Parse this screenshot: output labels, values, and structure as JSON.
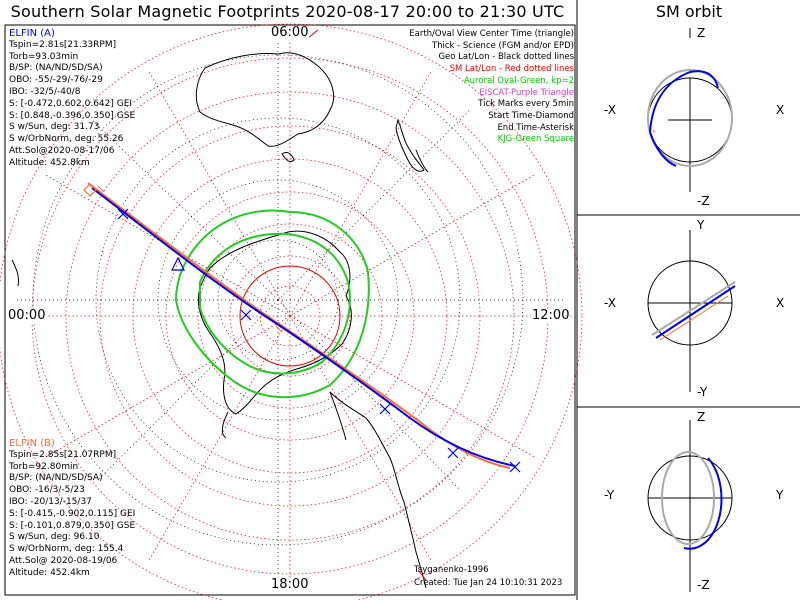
{
  "title": "Southern Solar Magnetic Footprints 2020-08-17 20:00 to 21:30 UTC",
  "sm_title": "SM orbit",
  "elfin_a": {
    "name": "ELFIN (A)",
    "color": "#0000ee",
    "lines": [
      "Tspin=2.81s[21.33RPM]",
      "Torb=93.03min",
      "B/SP: (NA/ND/SD/SA)",
      "OBO: -55/-29/-76/-29",
      "IBO: -32/5/-40/8",
      "S: [-0.472,0.602,0.642] GEI",
      "S: [0.848,-0.396,0.350] GSE",
      "S w/Sun, deg: 31.73",
      "S w/OrbNorm, deg: 55.26",
      "Att.Sol@2020-08-17/06",
      "Altitude: 452.8km"
    ]
  },
  "elfin_b": {
    "name": "ELFIN (B)",
    "color": "#ff6a3a",
    "lines": [
      "Tspin=2.85s[21.07RPM]",
      "Torb=92.80min",
      "B/SP: (NA/ND/SD/SA)",
      "OBO: -16/3/-5/23",
      "IBO: -20/13/-15/37",
      "S: [-0.415,-0.902,0.115] GEI",
      "S: [-0.101,0.879,0.350] GSE",
      "S w/Sun, deg: 96.10",
      "S w/OrbNorm, deg: 155.4",
      "Att.Sol@ 2020-08-19/06",
      "Altitude: 452.4km"
    ]
  },
  "legend": [
    {
      "text": "Earth/Oval View Center Time (triangle)",
      "color": "#000000"
    },
    {
      "text": "Thick - Science (FGM and/or EPD)",
      "color": "#000000"
    },
    {
      "text": "Geo Lat/Lon - Black dotted lines",
      "color": "#000000"
    },
    {
      "text": "SM Lat/Lon - Red dotted lines",
      "color": "#ee0000"
    },
    {
      "text": "Auroral Oval-Green, kp=2",
      "color": "#00cc00"
    },
    {
      "text": "EISCAT-Purple Triangle",
      "color": "#cc44cc"
    },
    {
      "text": "Tick Marks every 5min",
      "color": "#000000"
    },
    {
      "text": "Start Time-Diamond",
      "color": "#000000"
    },
    {
      "text": "End Time-Asterisk",
      "color": "#000000"
    },
    {
      "text": "KJG-Green Square",
      "color": "#00cc00"
    }
  ],
  "hour_labels": {
    "top": "06:00",
    "left": "00:00",
    "right": "12:00",
    "bottom": "18:00"
  },
  "credit": "Tsyganenko-1996",
  "created": "Created: Tue Jan 24 10:10:31 2023",
  "orbit_panels": [
    {
      "top": "Z",
      "bottom": "-Z",
      "left": "-X",
      "right": "X"
    },
    {
      "top": "Y",
      "bottom": "-Y",
      "left": "-X",
      "right": "X"
    },
    {
      "top": "Z",
      "bottom": "-Z",
      "left": "-Y",
      "right": "Y"
    }
  ]
}
